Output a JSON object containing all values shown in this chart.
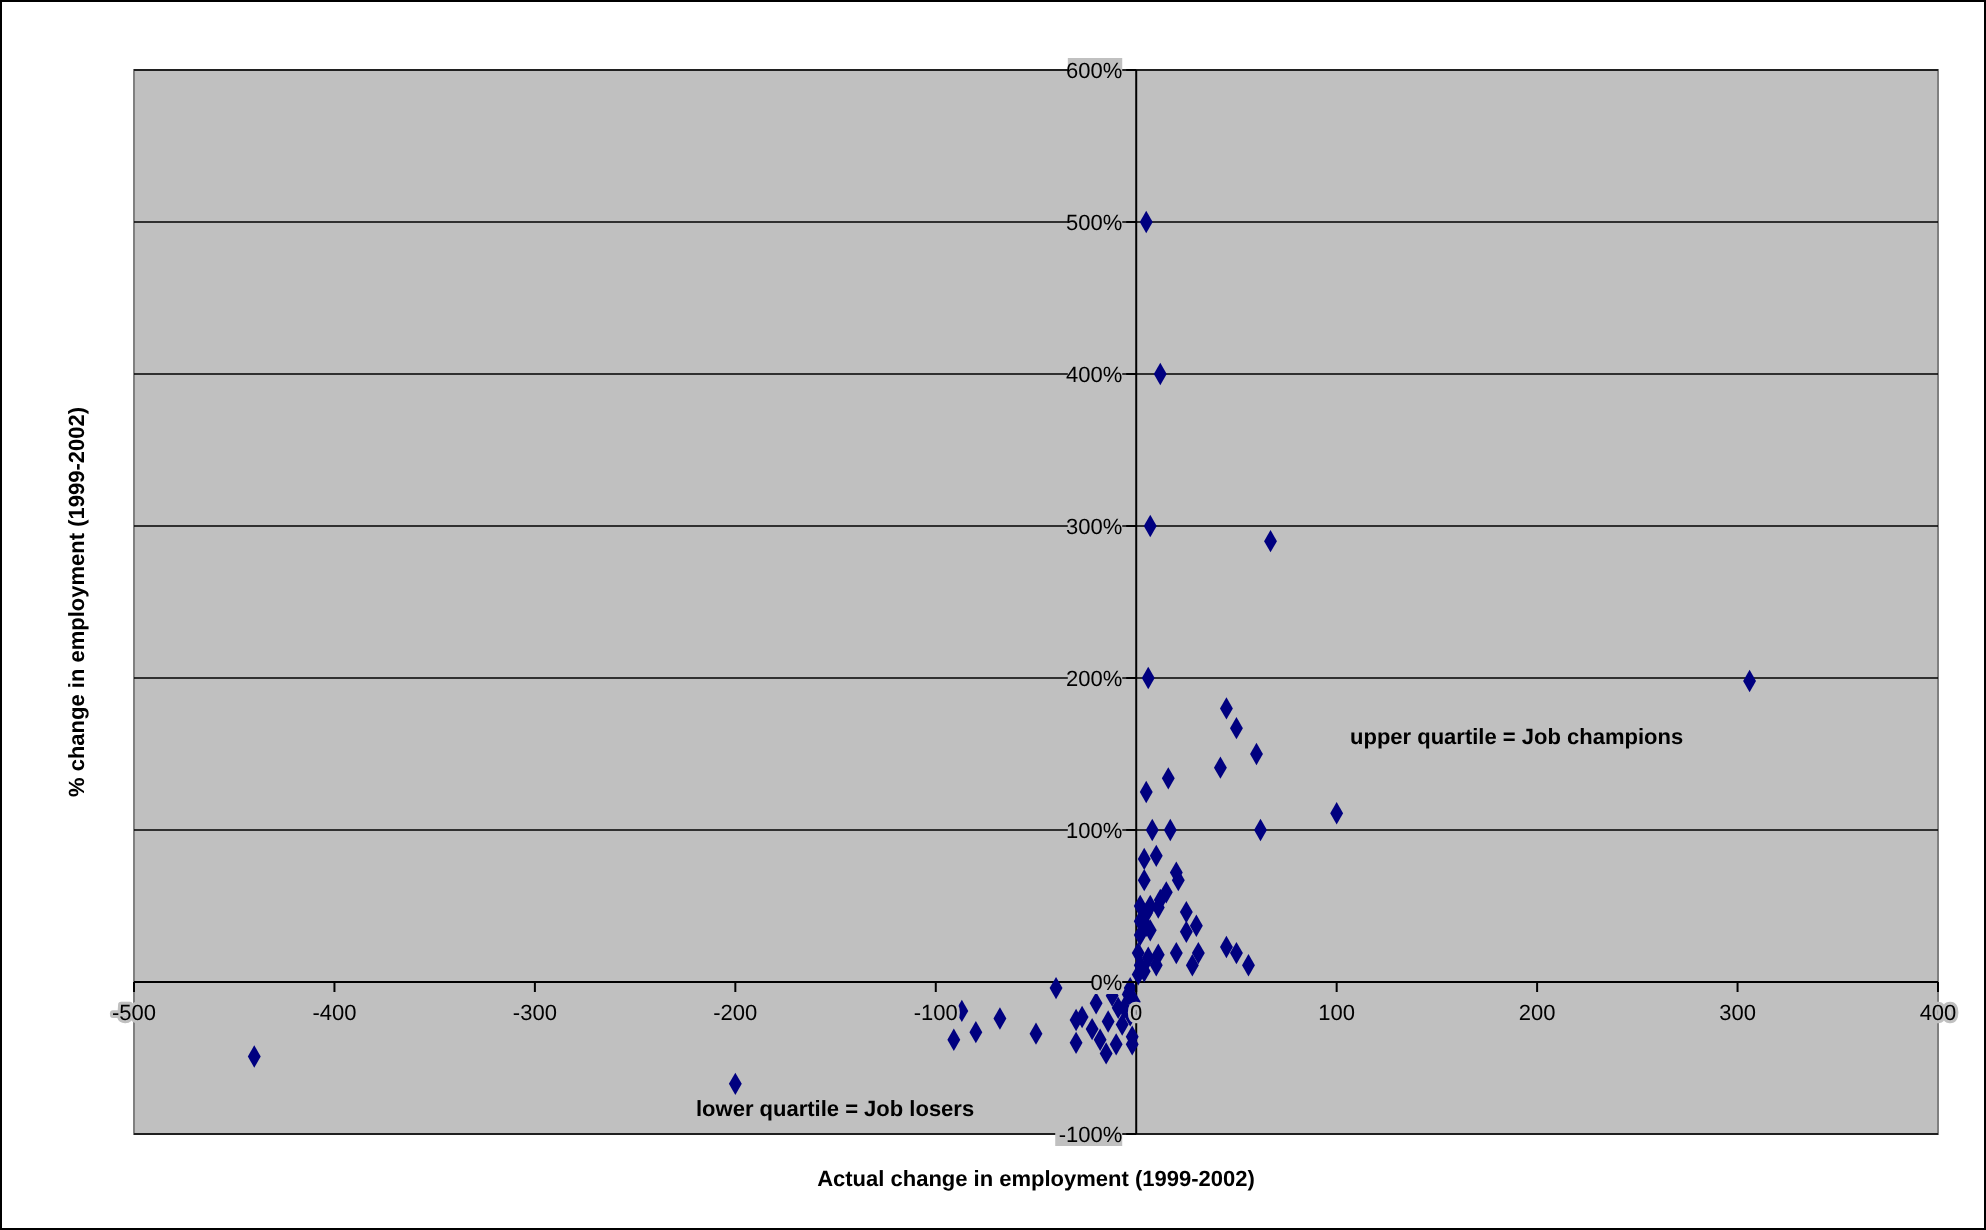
{
  "chart_data": {
    "type": "scatter",
    "xlabel": "Actual change in employment (1999-2002)",
    "ylabel": "% change in employment (1999-2002)",
    "annotations": [
      "upper quartile = Job champions",
      "lower quartile = Job losers"
    ],
    "xlim": [
      -500,
      400
    ],
    "xticks": [
      -500,
      -400,
      -300,
      -200,
      -100,
      0,
      100,
      200,
      300,
      400
    ],
    "ylim": [
      -100,
      600
    ],
    "yticks": [
      {
        "value": -100,
        "label": "-100%"
      },
      {
        "value": 0,
        "label": "0%"
      },
      {
        "value": 100,
        "label": "100%"
      },
      {
        "value": 200,
        "label": "200%"
      },
      {
        "value": 300,
        "label": "300%"
      },
      {
        "value": 400,
        "label": "400%"
      },
      {
        "value": 500,
        "label": "500%"
      },
      {
        "value": 600,
        "label": "600%"
      }
    ],
    "grid": "y",
    "marker": "diamond",
    "series": [
      {
        "color": "#000080",
        "x": [
          5,
          12,
          7,
          67,
          6,
          306,
          -440,
          -200,
          45,
          50,
          60,
          42,
          16,
          5,
          100,
          8,
          17,
          62,
          4,
          10,
          20,
          21,
          4,
          15,
          12,
          7,
          2,
          11,
          5,
          25,
          2,
          5,
          7,
          30,
          25,
          2,
          45,
          50,
          56,
          31,
          20,
          28,
          1,
          6,
          11,
          2,
          10,
          4,
          1,
          -40,
          -87,
          -91,
          -80,
          -68,
          -50,
          -30,
          -27,
          -30,
          -20,
          -22,
          -18,
          -15,
          -10,
          -14,
          -12,
          -9,
          -6,
          -7,
          -4,
          -3,
          -2,
          -2,
          -3,
          -1
        ],
        "values": [
          500,
          400,
          300,
          290,
          200,
          198,
          -49,
          -67,
          180,
          167,
          150,
          141,
          134,
          125,
          111,
          100,
          100,
          100,
          81,
          83,
          72,
          67,
          67,
          59,
          54,
          50,
          50,
          49,
          45,
          46,
          40,
          37,
          34,
          37,
          33,
          31,
          23,
          19,
          11,
          19,
          19,
          11,
          19,
          16,
          18,
          11,
          11,
          7,
          5,
          -4,
          -19,
          -38,
          -33,
          -24,
          -34,
          -25,
          -23,
          -40,
          -14,
          -31,
          -38,
          -47,
          -41,
          -26,
          -9,
          -17,
          -17,
          -28,
          -8,
          -4,
          -36,
          -41,
          -22,
          -13
        ]
      }
    ]
  }
}
